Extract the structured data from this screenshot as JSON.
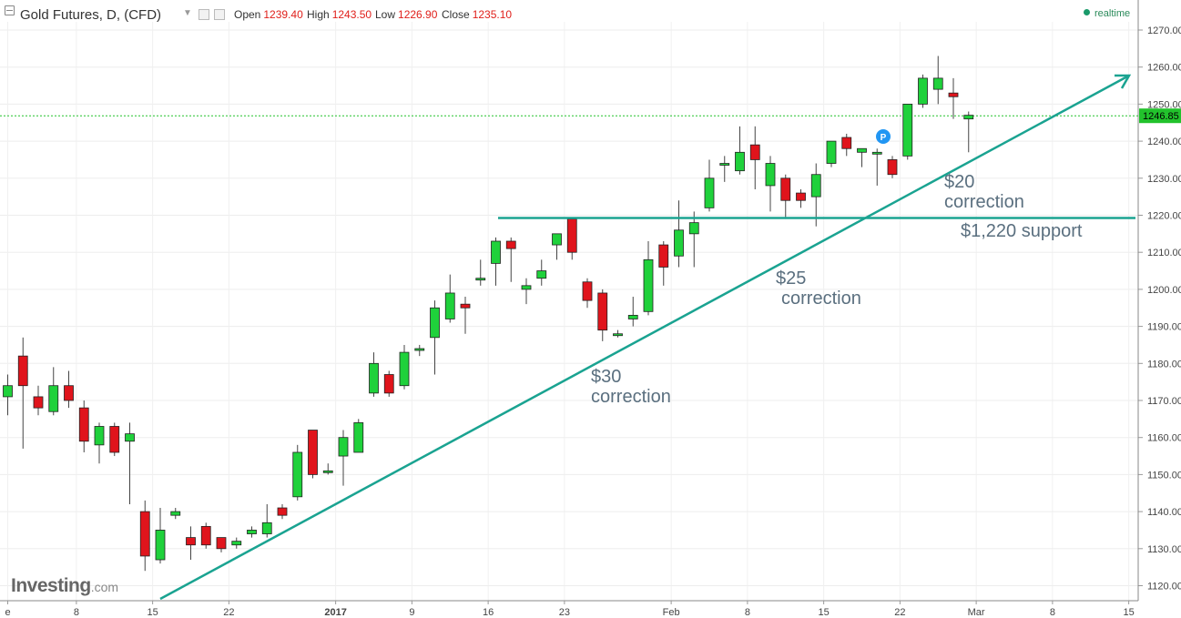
{
  "header": {
    "title": "Gold Futures, D, (CFD)",
    "open_label": "Open",
    "open_value": "1239.40",
    "high_label": "High",
    "high_value": "1243.50",
    "low_label": "Low",
    "low_value": "1226.90",
    "close_label": "Close",
    "close_value": "1235.10",
    "realtime_label": "realtime"
  },
  "logo": {
    "main": "Investing",
    "suffix": ".com"
  },
  "annotations": {
    "a30_amount": "$30",
    "a30_text": "correction",
    "a25_amount": "$25",
    "a25_text": "correction",
    "a20_amount": "$20",
    "a20_text": "correction",
    "support": "$1,220 support"
  },
  "colors": {
    "up": "#1fd13b",
    "down": "#e0141c",
    "trend": "#1aa391",
    "price_line": "#22c22c",
    "text_annotation": "#5a6f7f"
  },
  "chart_data": {
    "type": "candlestick",
    "y_axis": {
      "min": 1117,
      "max": 1275,
      "ticks": [
        1120,
        1130,
        1140,
        1150,
        1160,
        1170,
        1180,
        1190,
        1200,
        1210,
        1220,
        1230,
        1240,
        1250,
        1260,
        1270
      ]
    },
    "x_ticks": [
      {
        "label": "e",
        "bar": 0
      },
      {
        "label": "8",
        "bar": 4.5
      },
      {
        "label": "15",
        "bar": 9.5
      },
      {
        "label": "22",
        "bar": 14.5
      },
      {
        "label": "2017",
        "bar": 21.5
      },
      {
        "label": "9",
        "bar": 26.5
      },
      {
        "label": "16",
        "bar": 31.5
      },
      {
        "label": "23",
        "bar": 36.5
      },
      {
        "label": "Feb",
        "bar": 43.5
      },
      {
        "label": "8",
        "bar": 48.5
      },
      {
        "label": "15",
        "bar": 53.5
      },
      {
        "label": "22",
        "bar": 58.5
      },
      {
        "label": "Mar",
        "bar": 63.5
      },
      {
        "label": "8",
        "bar": 68.5
      },
      {
        "label": "15",
        "bar": 73.5
      }
    ],
    "current_price": "1246.85",
    "candles": [
      {
        "o": 1171,
        "c": 1174,
        "h": 1177,
        "l": 1166
      },
      {
        "o": 1182,
        "c": 1174,
        "h": 1187,
        "l": 1157
      },
      {
        "o": 1171,
        "c": 1168,
        "h": 1174,
        "l": 1166
      },
      {
        "o": 1167,
        "c": 1174,
        "h": 1179,
        "l": 1166
      },
      {
        "o": 1174,
        "c": 1170,
        "h": 1178,
        "l": 1168
      },
      {
        "o": 1168,
        "c": 1159,
        "h": 1170,
        "l": 1156
      },
      {
        "o": 1158,
        "c": 1163,
        "h": 1164,
        "l": 1153
      },
      {
        "o": 1163,
        "c": 1156,
        "h": 1164,
        "l": 1155
      },
      {
        "o": 1159,
        "c": 1161,
        "h": 1164,
        "l": 1142
      },
      {
        "o": 1140,
        "c": 1128,
        "h": 1143,
        "l": 1124
      },
      {
        "o": 1127,
        "c": 1135,
        "h": 1141,
        "l": 1126
      },
      {
        "o": 1139,
        "c": 1140,
        "h": 1141,
        "l": 1138
      },
      {
        "o": 1133,
        "c": 1131,
        "h": 1136,
        "l": 1127
      },
      {
        "o": 1136,
        "c": 1131,
        "h": 1137,
        "l": 1130
      },
      {
        "o": 1133,
        "c": 1130,
        "h": 1133,
        "l": 1129
      },
      {
        "o": 1131,
        "c": 1132,
        "h": 1133,
        "l": 1130
      },
      {
        "o": 1134,
        "c": 1135,
        "h": 1136,
        "l": 1133
      },
      {
        "o": 1134,
        "c": 1137,
        "h": 1142,
        "l": 1133
      },
      {
        "o": 1141,
        "c": 1139,
        "h": 1142,
        "l": 1138
      },
      {
        "o": 1144,
        "c": 1156,
        "h": 1158,
        "l": 1143
      },
      {
        "o": 1162,
        "c": 1150,
        "h": 1162,
        "l": 1149
      },
      {
        "o": 1151,
        "c": 1151,
        "h": 1153,
        "l": 1150
      },
      {
        "o": 1155,
        "c": 1160,
        "h": 1162,
        "l": 1147
      },
      {
        "o": 1156,
        "c": 1164,
        "h": 1165,
        "l": 1156
      },
      {
        "o": 1172,
        "c": 1180,
        "h": 1183,
        "l": 1171
      },
      {
        "o": 1177,
        "c": 1172,
        "h": 1178,
        "l": 1171
      },
      {
        "o": 1174,
        "c": 1183,
        "h": 1185,
        "l": 1173
      },
      {
        "o": 1184,
        "c": 1184,
        "h": 1185,
        "l": 1182
      },
      {
        "o": 1187,
        "c": 1195,
        "h": 1197,
        "l": 1177
      },
      {
        "o": 1192,
        "c": 1199,
        "h": 1204,
        "l": 1191
      },
      {
        "o": 1196,
        "c": 1195,
        "h": 1198,
        "l": 1188
      },
      {
        "o": 1203,
        "c": 1203,
        "h": 1208,
        "l": 1201
      },
      {
        "o": 1207,
        "c": 1213,
        "h": 1214,
        "l": 1201
      },
      {
        "o": 1213,
        "c": 1211,
        "h": 1214,
        "l": 1202
      },
      {
        "o": 1200,
        "c": 1201,
        "h": 1203,
        "l": 1196
      },
      {
        "o": 1203,
        "c": 1205,
        "h": 1208,
        "l": 1201
      },
      {
        "o": 1212,
        "c": 1215,
        "h": 1215,
        "l": 1208
      },
      {
        "o": 1219,
        "c": 1210,
        "h": 1219,
        "l": 1208
      },
      {
        "o": 1202,
        "c": 1197,
        "h": 1203,
        "l": 1195
      },
      {
        "o": 1199,
        "c": 1189,
        "h": 1200,
        "l": 1186
      },
      {
        "o": 1188,
        "c": 1188,
        "h": 1189,
        "l": 1187
      },
      {
        "o": 1192,
        "c": 1193,
        "h": 1198,
        "l": 1190
      },
      {
        "o": 1194,
        "c": 1208,
        "h": 1213,
        "l": 1193
      },
      {
        "o": 1212,
        "c": 1206,
        "h": 1213,
        "l": 1201
      },
      {
        "o": 1209,
        "c": 1216,
        "h": 1224,
        "l": 1206
      },
      {
        "o": 1215,
        "c": 1218,
        "h": 1221,
        "l": 1206
      },
      {
        "o": 1222,
        "c": 1230,
        "h": 1235,
        "l": 1221
      },
      {
        "o": 1234,
        "c": 1234,
        "h": 1236,
        "l": 1229
      },
      {
        "o": 1232,
        "c": 1237,
        "h": 1244,
        "l": 1231
      },
      {
        "o": 1239,
        "c": 1235,
        "h": 1244,
        "l": 1227
      },
      {
        "o": 1228,
        "c": 1234,
        "h": 1236,
        "l": 1221
      },
      {
        "o": 1230,
        "c": 1224,
        "h": 1231,
        "l": 1219
      },
      {
        "o": 1226,
        "c": 1224,
        "h": 1227,
        "l": 1222
      },
      {
        "o": 1225,
        "c": 1231,
        "h": 1234,
        "l": 1217
      },
      {
        "o": 1234,
        "c": 1240,
        "h": 1240,
        "l": 1233
      },
      {
        "o": 1241,
        "c": 1238,
        "h": 1242,
        "l": 1236
      },
      {
        "o": 1237,
        "c": 1238,
        "h": 1238,
        "l": 1233
      },
      {
        "o": 1237,
        "c": 1237,
        "h": 1238,
        "l": 1228
      },
      {
        "o": 1235,
        "c": 1231,
        "h": 1236,
        "l": 1230
      },
      {
        "o": 1236,
        "c": 1250,
        "h": 1250,
        "l": 1235
      },
      {
        "o": 1250,
        "c": 1257,
        "h": 1258,
        "l": 1249
      },
      {
        "o": 1254,
        "c": 1257,
        "h": 1263,
        "l": 1250
      },
      {
        "o": 1253,
        "c": 1252,
        "h": 1257,
        "l": 1246
      },
      {
        "o": 1246,
        "c": 1247,
        "h": 1248,
        "l": 1237
      }
    ]
  }
}
